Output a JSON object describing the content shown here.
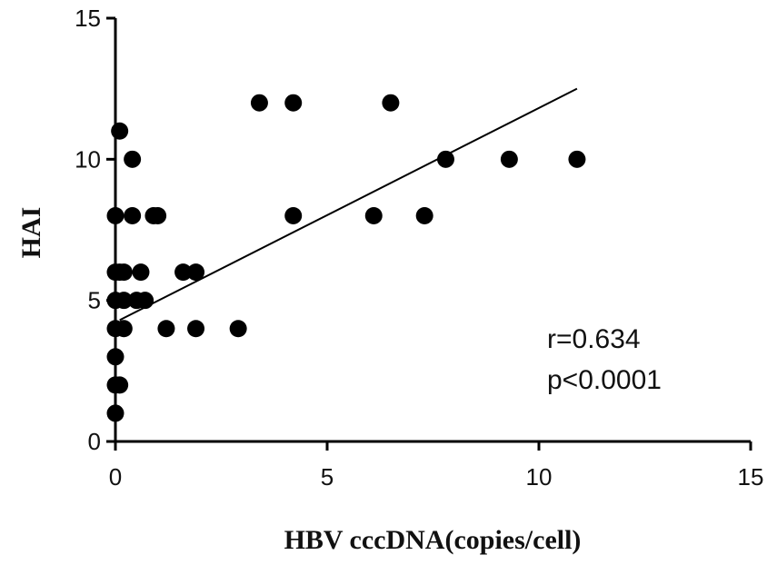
{
  "chart_data": {
    "type": "scatter",
    "title": "",
    "xlabel": "HBV cccDNA(copies/cell)",
    "ylabel": "HAI",
    "xlim": [
      0,
      15
    ],
    "ylim": [
      0,
      15
    ],
    "xticks": [
      "0",
      "5",
      "10",
      "15"
    ],
    "yticks": [
      "0",
      "5",
      "10",
      "15"
    ],
    "grid": false,
    "legend": "none",
    "point_color": "#000000",
    "points": [
      {
        "x": 0.0,
        "y": 1
      },
      {
        "x": 0.0,
        "y": 2
      },
      {
        "x": 0.1,
        "y": 2
      },
      {
        "x": 0.0,
        "y": 3
      },
      {
        "x": 0.0,
        "y": 4
      },
      {
        "x": 0.2,
        "y": 4
      },
      {
        "x": 0.0,
        "y": 5
      },
      {
        "x": 0.2,
        "y": 5
      },
      {
        "x": 0.5,
        "y": 5
      },
      {
        "x": 0.7,
        "y": 5
      },
      {
        "x": 0.0,
        "y": 6
      },
      {
        "x": 0.1,
        "y": 6
      },
      {
        "x": 0.2,
        "y": 6
      },
      {
        "x": 0.6,
        "y": 6
      },
      {
        "x": 0.0,
        "y": 8
      },
      {
        "x": 0.4,
        "y": 8
      },
      {
        "x": 0.9,
        "y": 8
      },
      {
        "x": 1.0,
        "y": 8
      },
      {
        "x": 0.4,
        "y": 10
      },
      {
        "x": 0.1,
        "y": 11
      },
      {
        "x": 1.2,
        "y": 4
      },
      {
        "x": 1.6,
        "y": 6
      },
      {
        "x": 1.9,
        "y": 6
      },
      {
        "x": 1.9,
        "y": 4
      },
      {
        "x": 2.9,
        "y": 4
      },
      {
        "x": 3.4,
        "y": 12
      },
      {
        "x": 4.2,
        "y": 12
      },
      {
        "x": 4.2,
        "y": 8
      },
      {
        "x": 6.1,
        "y": 8
      },
      {
        "x": 6.5,
        "y": 12
      },
      {
        "x": 7.3,
        "y": 8
      },
      {
        "x": 7.8,
        "y": 10
      },
      {
        "x": 9.3,
        "y": 10
      },
      {
        "x": 10.9,
        "y": 10
      }
    ],
    "trendline": {
      "x1": 0.1,
      "y1": 4.3,
      "x2": 10.9,
      "y2": 12.5
    },
    "annotations": [
      "r=0.634",
      "p<0.0001"
    ]
  }
}
